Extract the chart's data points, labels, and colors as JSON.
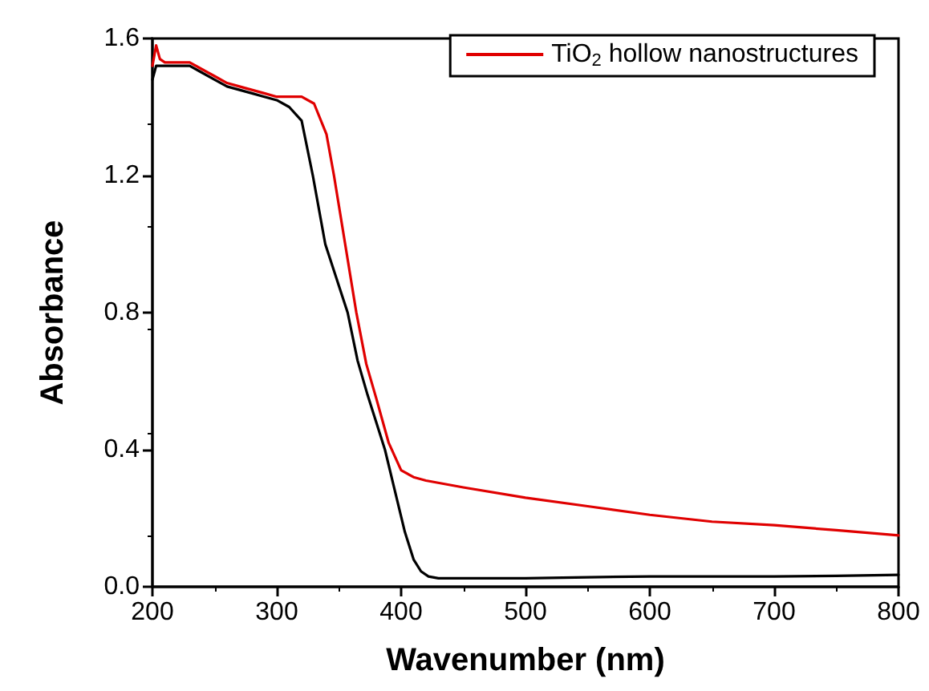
{
  "chart_data": {
    "type": "line",
    "xlabel": "Wavenumber (nm)",
    "ylabel": "Absorbance",
    "xlim": [
      200,
      800
    ],
    "xticks": [
      200,
      300,
      400,
      500,
      600,
      700,
      800
    ],
    "ylim": [
      0,
      1.6
    ],
    "yticks": [
      {
        "value": 0,
        "label": "0.0"
      },
      0.4,
      0.8,
      1.2,
      1.6
    ],
    "grid": false,
    "legend": "top right",
    "marker": "none",
    "line_style": "solid",
    "series": [
      {
        "color": "#000000",
        "x": [
          200,
          203,
          210,
          220,
          230,
          240,
          250,
          260,
          270,
          280,
          290,
          300,
          310,
          320,
          329,
          339,
          348,
          357,
          365,
          373,
          380,
          387,
          395,
          403,
          410,
          416,
          422,
          430,
          450,
          500,
          550,
          600,
          650,
          700,
          750,
          800
        ],
        "values": [
          1.48,
          1.52,
          1.52,
          1.52,
          1.52,
          1.5,
          1.48,
          1.46,
          1.45,
          1.44,
          1.43,
          1.42,
          1.4,
          1.36,
          1.2,
          1.0,
          0.9,
          0.8,
          0.66,
          0.56,
          0.48,
          0.4,
          0.28,
          0.16,
          0.08,
          0.045,
          0.03,
          0.025,
          0.025,
          0.025,
          0.028,
          0.03,
          0.03,
          0.03,
          0.032,
          0.035
        ]
      },
      {
        "name": "TiO$_{2}$ hollow nanostructures",
        "color": "#e00000",
        "x": [
          200,
          203,
          206,
          210,
          220,
          230,
          240,
          250,
          260,
          270,
          280,
          290,
          300,
          310,
          320,
          330,
          340,
          346,
          355,
          364,
          372,
          380,
          390,
          400,
          410,
          420,
          450,
          500,
          550,
          600,
          650,
          700,
          750,
          800
        ],
        "values": [
          1.52,
          1.58,
          1.54,
          1.53,
          1.53,
          1.53,
          1.51,
          1.49,
          1.47,
          1.46,
          1.45,
          1.44,
          1.43,
          1.43,
          1.43,
          1.41,
          1.32,
          1.2,
          1.0,
          0.8,
          0.65,
          0.55,
          0.42,
          0.34,
          0.32,
          0.31,
          0.29,
          0.26,
          0.235,
          0.21,
          0.19,
          0.18,
          0.165,
          0.15
        ]
      }
    ]
  }
}
